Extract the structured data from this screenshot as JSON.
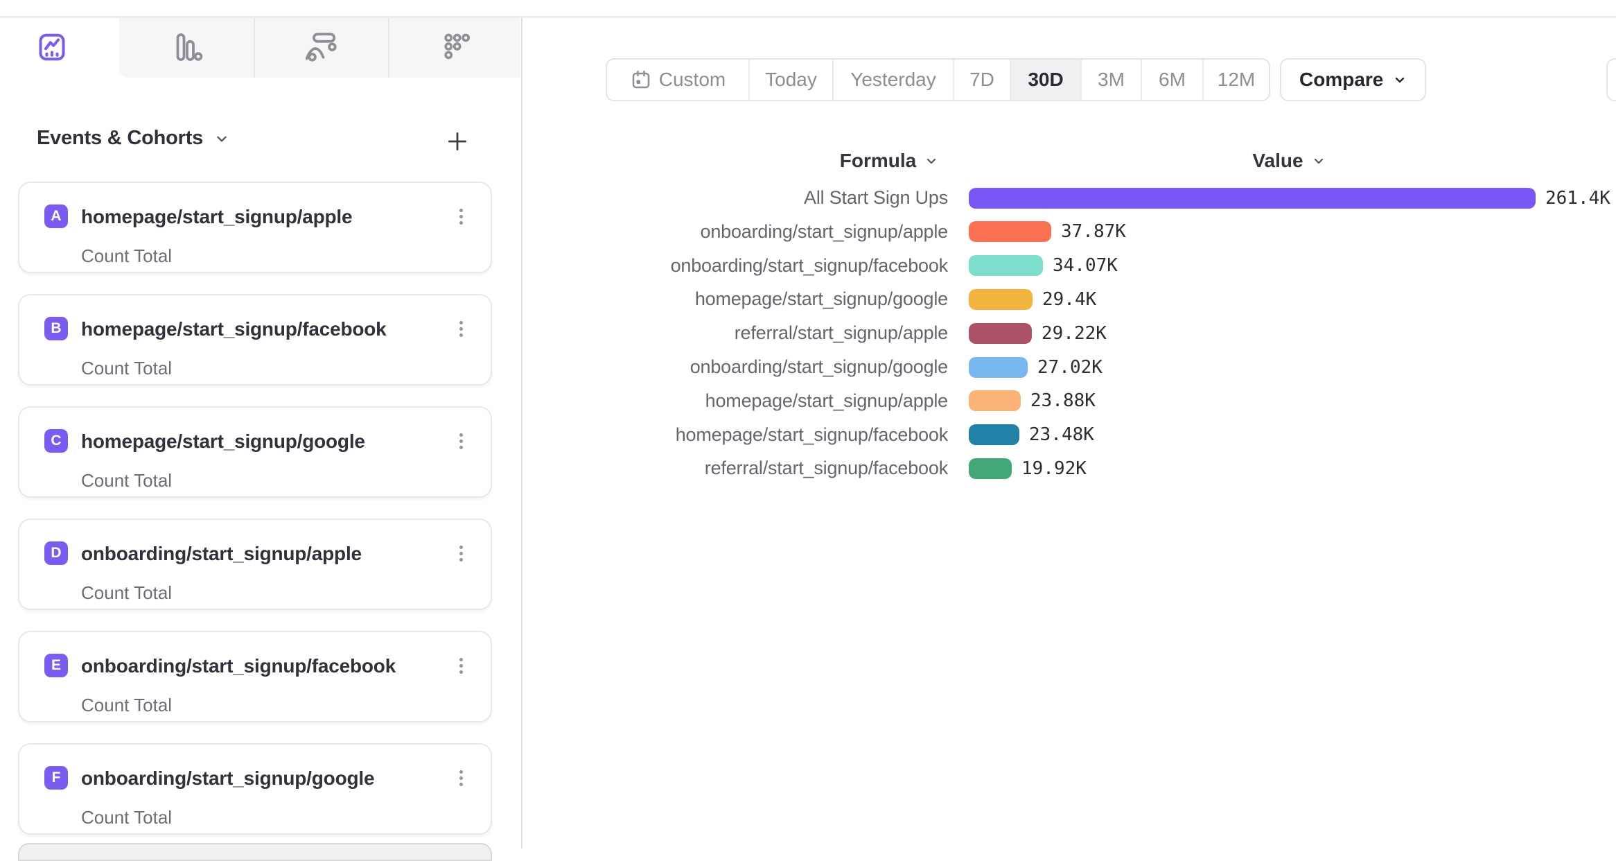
{
  "colors": {
    "accent_purple": "#7b5cf0",
    "tab_inactive_icon": "#8e8e96",
    "tab_strip_bg": "#f6f6f7",
    "border": "#e4e4e7",
    "selected_segment_bg": "#f1f1f3",
    "text_dark": "#2c2c35",
    "text_gray": "#8d8d95"
  },
  "tabs": [
    {
      "id": "insights",
      "icon": "line-chart-icon",
      "active": true
    },
    {
      "id": "bars",
      "icon": "bar-chart-icon",
      "active": false
    },
    {
      "id": "flows",
      "icon": "flows-icon",
      "active": false
    },
    {
      "id": "retention",
      "icon": "retention-grid-icon",
      "active": false
    }
  ],
  "sidebar": {
    "title": "Events & Cohorts",
    "events": [
      {
        "letter": "A",
        "name": "homepage/start_signup/apple",
        "metric": "Count Total"
      },
      {
        "letter": "B",
        "name": "homepage/start_signup/facebook",
        "metric": "Count Total"
      },
      {
        "letter": "C",
        "name": "homepage/start_signup/google",
        "metric": "Count Total"
      },
      {
        "letter": "D",
        "name": "onboarding/start_signup/apple",
        "metric": "Count Total"
      },
      {
        "letter": "E",
        "name": "onboarding/start_signup/facebook",
        "metric": "Count Total"
      },
      {
        "letter": "F",
        "name": "onboarding/start_signup/google",
        "metric": "Count Total"
      }
    ]
  },
  "toolbar": {
    "date_ranges": [
      "Custom",
      "Today",
      "Yesterday",
      "7D",
      "30D",
      "3M",
      "6M",
      "12M"
    ],
    "selected_range": "30D",
    "compare_label": "Compare"
  },
  "chart": {
    "formula_header": "Formula",
    "value_header": "Value"
  },
  "chart_data": {
    "type": "bar",
    "orientation": "horizontal",
    "title": "",
    "xlabel": "Value",
    "ylabel": "Formula",
    "xlim": [
      0,
      261400
    ],
    "grid": false,
    "legend": "none",
    "categories": [
      "All Start Sign Ups",
      "onboarding/start_signup/apple",
      "onboarding/start_signup/facebook",
      "homepage/start_signup/google",
      "referral/start_signup/apple",
      "onboarding/start_signup/google",
      "homepage/start_signup/apple",
      "homepage/start_signup/facebook",
      "referral/start_signup/facebook"
    ],
    "values": [
      261400,
      37870,
      34070,
      29400,
      29220,
      27020,
      23880,
      23480,
      19920
    ],
    "value_labels": [
      "261.4K",
      "37.87K",
      "34.07K",
      "29.4K",
      "29.22K",
      "27.02K",
      "23.88K",
      "23.48K",
      "19.92K"
    ],
    "colors": [
      "#7857f5",
      "#fa7252",
      "#7ddecc",
      "#f1b43f",
      "#ad5368",
      "#77b6ee",
      "#fbb275",
      "#2180a6",
      "#42a878"
    ]
  }
}
